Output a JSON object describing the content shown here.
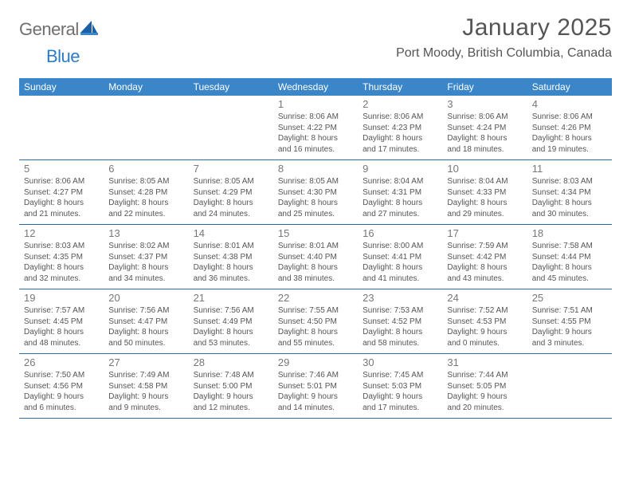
{
  "logo": {
    "general": "General",
    "blue": "Blue"
  },
  "title": "January 2025",
  "location": "Port Moody, British Columbia, Canada",
  "colors": {
    "header_bg": "#3b86c8",
    "header_text": "#ffffff",
    "rule": "#2a6aa8",
    "body_text": "#555555",
    "daynum": "#777777",
    "logo_gray": "#6f6f6f",
    "logo_blue": "#2b7cc4",
    "page_bg": "#ffffff"
  },
  "daysOfWeek": [
    "Sunday",
    "Monday",
    "Tuesday",
    "Wednesday",
    "Thursday",
    "Friday",
    "Saturday"
  ],
  "weeks": [
    [
      {
        "n": "",
        "sr": "",
        "ss": "",
        "dl1": "",
        "dl2": ""
      },
      {
        "n": "",
        "sr": "",
        "ss": "",
        "dl1": "",
        "dl2": ""
      },
      {
        "n": "",
        "sr": "",
        "ss": "",
        "dl1": "",
        "dl2": ""
      },
      {
        "n": "1",
        "sr": "Sunrise: 8:06 AM",
        "ss": "Sunset: 4:22 PM",
        "dl1": "Daylight: 8 hours",
        "dl2": "and 16 minutes."
      },
      {
        "n": "2",
        "sr": "Sunrise: 8:06 AM",
        "ss": "Sunset: 4:23 PM",
        "dl1": "Daylight: 8 hours",
        "dl2": "and 17 minutes."
      },
      {
        "n": "3",
        "sr": "Sunrise: 8:06 AM",
        "ss": "Sunset: 4:24 PM",
        "dl1": "Daylight: 8 hours",
        "dl2": "and 18 minutes."
      },
      {
        "n": "4",
        "sr": "Sunrise: 8:06 AM",
        "ss": "Sunset: 4:26 PM",
        "dl1": "Daylight: 8 hours",
        "dl2": "and 19 minutes."
      }
    ],
    [
      {
        "n": "5",
        "sr": "Sunrise: 8:06 AM",
        "ss": "Sunset: 4:27 PM",
        "dl1": "Daylight: 8 hours",
        "dl2": "and 21 minutes."
      },
      {
        "n": "6",
        "sr": "Sunrise: 8:05 AM",
        "ss": "Sunset: 4:28 PM",
        "dl1": "Daylight: 8 hours",
        "dl2": "and 22 minutes."
      },
      {
        "n": "7",
        "sr": "Sunrise: 8:05 AM",
        "ss": "Sunset: 4:29 PM",
        "dl1": "Daylight: 8 hours",
        "dl2": "and 24 minutes."
      },
      {
        "n": "8",
        "sr": "Sunrise: 8:05 AM",
        "ss": "Sunset: 4:30 PM",
        "dl1": "Daylight: 8 hours",
        "dl2": "and 25 minutes."
      },
      {
        "n": "9",
        "sr": "Sunrise: 8:04 AM",
        "ss": "Sunset: 4:31 PM",
        "dl1": "Daylight: 8 hours",
        "dl2": "and 27 minutes."
      },
      {
        "n": "10",
        "sr": "Sunrise: 8:04 AM",
        "ss": "Sunset: 4:33 PM",
        "dl1": "Daylight: 8 hours",
        "dl2": "and 29 minutes."
      },
      {
        "n": "11",
        "sr": "Sunrise: 8:03 AM",
        "ss": "Sunset: 4:34 PM",
        "dl1": "Daylight: 8 hours",
        "dl2": "and 30 minutes."
      }
    ],
    [
      {
        "n": "12",
        "sr": "Sunrise: 8:03 AM",
        "ss": "Sunset: 4:35 PM",
        "dl1": "Daylight: 8 hours",
        "dl2": "and 32 minutes."
      },
      {
        "n": "13",
        "sr": "Sunrise: 8:02 AM",
        "ss": "Sunset: 4:37 PM",
        "dl1": "Daylight: 8 hours",
        "dl2": "and 34 minutes."
      },
      {
        "n": "14",
        "sr": "Sunrise: 8:01 AM",
        "ss": "Sunset: 4:38 PM",
        "dl1": "Daylight: 8 hours",
        "dl2": "and 36 minutes."
      },
      {
        "n": "15",
        "sr": "Sunrise: 8:01 AM",
        "ss": "Sunset: 4:40 PM",
        "dl1": "Daylight: 8 hours",
        "dl2": "and 38 minutes."
      },
      {
        "n": "16",
        "sr": "Sunrise: 8:00 AM",
        "ss": "Sunset: 4:41 PM",
        "dl1": "Daylight: 8 hours",
        "dl2": "and 41 minutes."
      },
      {
        "n": "17",
        "sr": "Sunrise: 7:59 AM",
        "ss": "Sunset: 4:42 PM",
        "dl1": "Daylight: 8 hours",
        "dl2": "and 43 minutes."
      },
      {
        "n": "18",
        "sr": "Sunrise: 7:58 AM",
        "ss": "Sunset: 4:44 PM",
        "dl1": "Daylight: 8 hours",
        "dl2": "and 45 minutes."
      }
    ],
    [
      {
        "n": "19",
        "sr": "Sunrise: 7:57 AM",
        "ss": "Sunset: 4:45 PM",
        "dl1": "Daylight: 8 hours",
        "dl2": "and 48 minutes."
      },
      {
        "n": "20",
        "sr": "Sunrise: 7:56 AM",
        "ss": "Sunset: 4:47 PM",
        "dl1": "Daylight: 8 hours",
        "dl2": "and 50 minutes."
      },
      {
        "n": "21",
        "sr": "Sunrise: 7:56 AM",
        "ss": "Sunset: 4:49 PM",
        "dl1": "Daylight: 8 hours",
        "dl2": "and 53 minutes."
      },
      {
        "n": "22",
        "sr": "Sunrise: 7:55 AM",
        "ss": "Sunset: 4:50 PM",
        "dl1": "Daylight: 8 hours",
        "dl2": "and 55 minutes."
      },
      {
        "n": "23",
        "sr": "Sunrise: 7:53 AM",
        "ss": "Sunset: 4:52 PM",
        "dl1": "Daylight: 8 hours",
        "dl2": "and 58 minutes."
      },
      {
        "n": "24",
        "sr": "Sunrise: 7:52 AM",
        "ss": "Sunset: 4:53 PM",
        "dl1": "Daylight: 9 hours",
        "dl2": "and 0 minutes."
      },
      {
        "n": "25",
        "sr": "Sunrise: 7:51 AM",
        "ss": "Sunset: 4:55 PM",
        "dl1": "Daylight: 9 hours",
        "dl2": "and 3 minutes."
      }
    ],
    [
      {
        "n": "26",
        "sr": "Sunrise: 7:50 AM",
        "ss": "Sunset: 4:56 PM",
        "dl1": "Daylight: 9 hours",
        "dl2": "and 6 minutes."
      },
      {
        "n": "27",
        "sr": "Sunrise: 7:49 AM",
        "ss": "Sunset: 4:58 PM",
        "dl1": "Daylight: 9 hours",
        "dl2": "and 9 minutes."
      },
      {
        "n": "28",
        "sr": "Sunrise: 7:48 AM",
        "ss": "Sunset: 5:00 PM",
        "dl1": "Daylight: 9 hours",
        "dl2": "and 12 minutes."
      },
      {
        "n": "29",
        "sr": "Sunrise: 7:46 AM",
        "ss": "Sunset: 5:01 PM",
        "dl1": "Daylight: 9 hours",
        "dl2": "and 14 minutes."
      },
      {
        "n": "30",
        "sr": "Sunrise: 7:45 AM",
        "ss": "Sunset: 5:03 PM",
        "dl1": "Daylight: 9 hours",
        "dl2": "and 17 minutes."
      },
      {
        "n": "31",
        "sr": "Sunrise: 7:44 AM",
        "ss": "Sunset: 5:05 PM",
        "dl1": "Daylight: 9 hours",
        "dl2": "and 20 minutes."
      },
      {
        "n": "",
        "sr": "",
        "ss": "",
        "dl1": "",
        "dl2": ""
      }
    ]
  ]
}
